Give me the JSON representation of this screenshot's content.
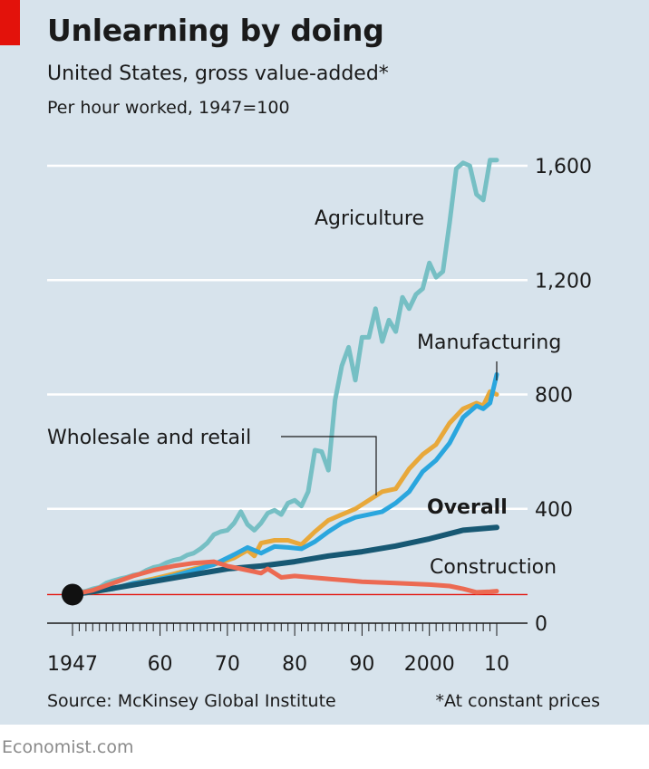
{
  "header": {
    "title": "Unlearning by doing",
    "subtitle": "United States, gross value-added*",
    "unit_note": "Per hour worked, 1947=100"
  },
  "footer": {
    "source": "Source: McKinsey Global Institute",
    "footnote": "*At constant prices",
    "brand": "Economist.com"
  },
  "colors": {
    "background": "#d7e3ec",
    "accent_red": "#e3120b",
    "agriculture": "#76bfc4",
    "manufacturing": "#2aa6de",
    "wholesale_retail": "#e8a83a",
    "overall": "#175873",
    "construction": "#ec6a52"
  },
  "chart_data": {
    "type": "line",
    "title": "Unlearning by doing",
    "subtitle": "United States, gross value-added*",
    "ylabel": "Per hour worked, 1947=100",
    "xlim": [
      1947,
      2010
    ],
    "ylim": [
      0,
      1600
    ],
    "y_ticks": [
      0,
      400,
      800,
      1200,
      1600
    ],
    "y_tick_labels": [
      "0",
      "400",
      "800",
      "1,200",
      "1,600"
    ],
    "x_ticks": [
      1947,
      1960,
      1970,
      1980,
      1990,
      2000,
      2010
    ],
    "x_tick_labels": [
      "1947",
      "60",
      "70",
      "80",
      "90",
      "2000",
      "10"
    ],
    "grid": true,
    "baseline": 100,
    "series": [
      {
        "name": "Agriculture",
        "color": "#76bfc4",
        "x": [
          1947,
          1948,
          1949,
          1950,
          1951,
          1952,
          1953,
          1954,
          1955,
          1956,
          1957,
          1958,
          1959,
          1960,
          1961,
          1962,
          1963,
          1964,
          1965,
          1966,
          1967,
          1968,
          1969,
          1970,
          1971,
          1972,
          1973,
          1974,
          1975,
          1976,
          1977,
          1978,
          1979,
          1980,
          1981,
          1982,
          1983,
          1984,
          1985,
          1986,
          1987,
          1988,
          1989,
          1990,
          1991,
          1992,
          1993,
          1994,
          1995,
          1996,
          1997,
          1998,
          1999,
          2000,
          2001,
          2002,
          2003,
          2004,
          2005,
          2006,
          2007,
          2008,
          2009,
          2010
        ],
        "values": [
          100,
          108,
          112,
          120,
          125,
          140,
          148,
          155,
          160,
          168,
          172,
          185,
          195,
          200,
          212,
          220,
          225,
          238,
          245,
          260,
          280,
          310,
          320,
          325,
          350,
          390,
          345,
          325,
          350,
          385,
          395,
          380,
          420,
          430,
          410,
          460,
          605,
          600,
          535,
          780,
          900,
          965,
          850,
          1000,
          1000,
          1100,
          985,
          1060,
          1020,
          1140,
          1100,
          1150,
          1170,
          1260,
          1210,
          1230,
          1400,
          1590,
          1610,
          1600,
          1500,
          1480,
          1620,
          1620
        ]
      },
      {
        "name": "Wholesale and retail",
        "color": "#e8a83a",
        "x": [
          1947,
          1950,
          1953,
          1956,
          1959,
          1962,
          1965,
          1968,
          1971,
          1973,
          1974,
          1975,
          1977,
          1979,
          1981,
          1983,
          1985,
          1987,
          1989,
          1991,
          1993,
          1995,
          1997,
          1999,
          2001,
          2003,
          2005,
          2007,
          2008,
          2009,
          2010
        ],
        "values": [
          100,
          108,
          120,
          140,
          155,
          172,
          190,
          205,
          228,
          255,
          235,
          280,
          290,
          290,
          275,
          320,
          360,
          380,
          400,
          430,
          460,
          470,
          540,
          590,
          625,
          700,
          750,
          770,
          760,
          810,
          800
        ]
      },
      {
        "name": "Manufacturing",
        "color": "#2aa6de",
        "x": [
          1947,
          1950,
          1953,
          1956,
          1959,
          1962,
          1965,
          1968,
          1971,
          1973,
          1975,
          1977,
          1979,
          1981,
          1983,
          1985,
          1987,
          1989,
          1991,
          1993,
          1995,
          1997,
          1999,
          2001,
          2003,
          2005,
          2007,
          2008,
          2009,
          2010
        ],
        "values": [
          100,
          110,
          120,
          140,
          150,
          165,
          185,
          205,
          240,
          265,
          245,
          268,
          265,
          260,
          285,
          320,
          350,
          370,
          380,
          390,
          420,
          460,
          530,
          570,
          630,
          720,
          760,
          750,
          770,
          870
        ]
      },
      {
        "name": "Overall",
        "color": "#175873",
        "x": [
          1947,
          1950,
          1955,
          1960,
          1965,
          1970,
          1975,
          1980,
          1985,
          1990,
          1995,
          2000,
          2005,
          2010
        ],
        "values": [
          100,
          110,
          130,
          150,
          170,
          190,
          200,
          215,
          235,
          250,
          270,
          295,
          325,
          335
        ]
      },
      {
        "name": "Construction",
        "color": "#ec6a52",
        "x": [
          1947,
          1950,
          1953,
          1956,
          1959,
          1962,
          1965,
          1968,
          1970,
          1972,
          1974,
          1975,
          1976,
          1978,
          1980,
          1985,
          1990,
          1995,
          2000,
          2003,
          2005,
          2007,
          2009,
          2010
        ],
        "values": [
          100,
          115,
          140,
          165,
          185,
          200,
          210,
          215,
          200,
          190,
          180,
          175,
          190,
          160,
          165,
          155,
          145,
          140,
          135,
          130,
          120,
          108,
          110,
          112
        ]
      }
    ],
    "annotations": [
      "Agriculture",
      "Manufacturing",
      "Wholesale and retail",
      "Overall",
      "Construction"
    ]
  }
}
